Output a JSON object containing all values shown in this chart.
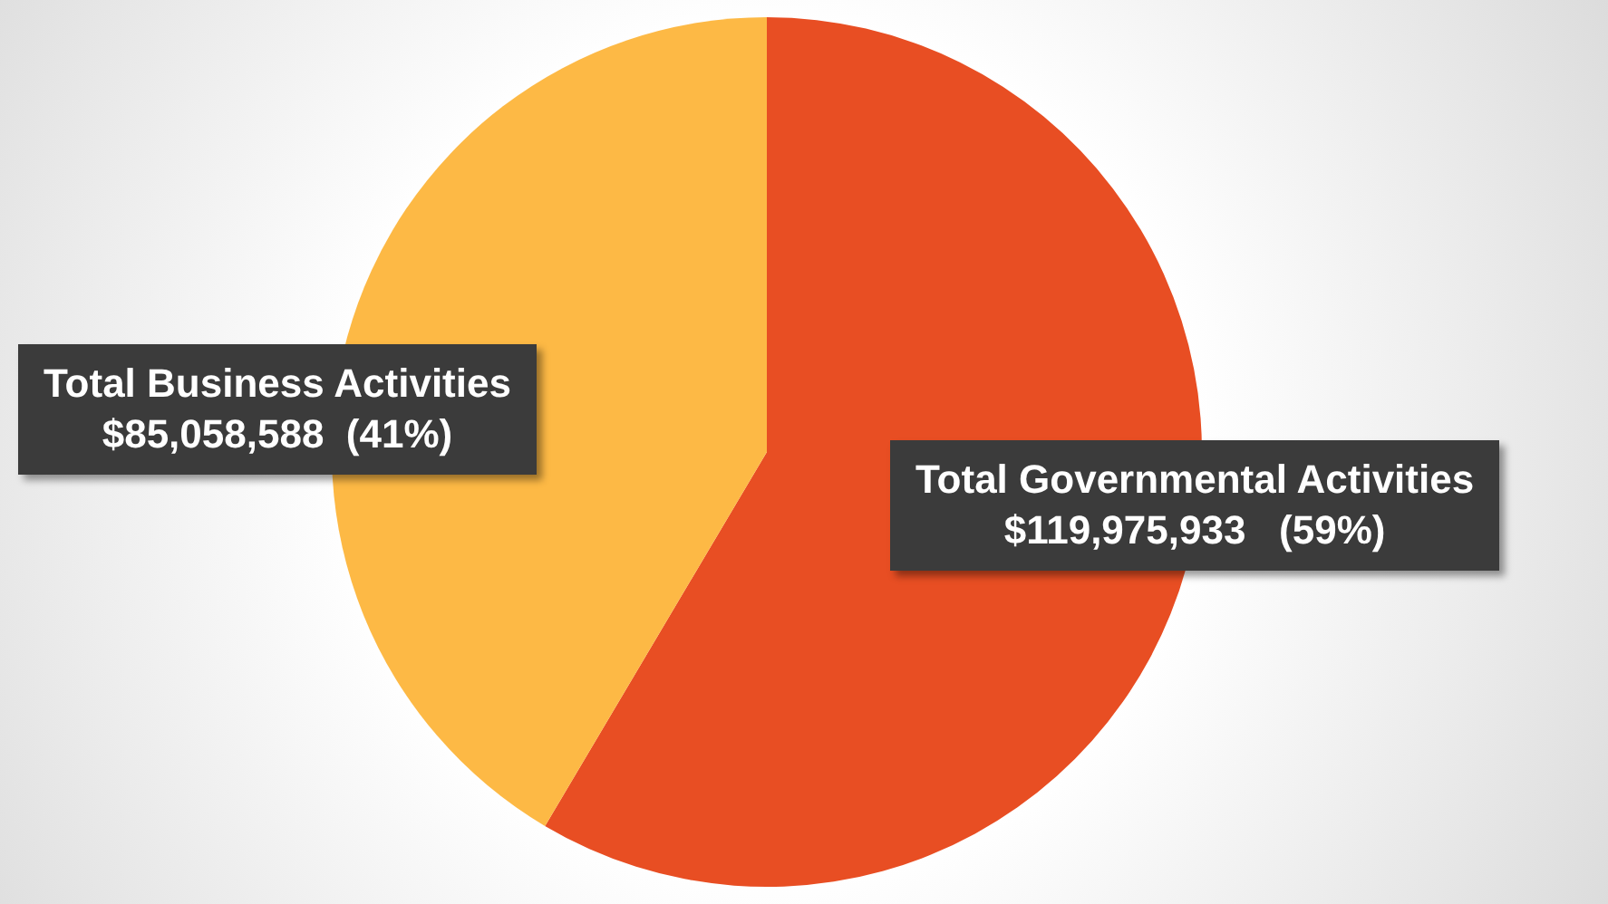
{
  "chart_data": {
    "type": "pie",
    "categories": [
      "Total Governmental Activities",
      "Total Business Activities"
    ],
    "values": [
      119975933,
      85058588
    ],
    "colors": [
      "#e84e23",
      "#fdb945"
    ],
    "value_labels": [
      "$119,975,933   (59%)",
      "$85,058,588  (41%)"
    ]
  }
}
